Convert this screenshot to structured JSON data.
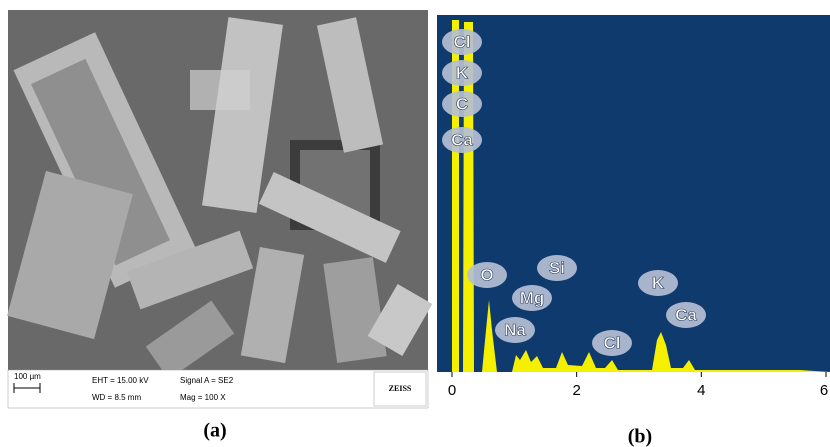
{
  "panel_a": {
    "caption": "(a)",
    "scale_bar": "100 µm",
    "eht": "EHT = 15.00 kV",
    "wd": "WD = 8.5 mm",
    "signal": "Signal A = SE2",
    "mag": "Mag = 100 X",
    "brand": "ZEISS"
  },
  "panel_b": {
    "caption": "(b)",
    "xlim": [
      0,
      6
    ],
    "xticks": [
      0,
      2,
      4,
      6
    ],
    "peak_labels": [
      "Cl",
      "K",
      "C",
      "Ca",
      "O",
      "Si",
      "Mg",
      "Na",
      "Cl",
      "K",
      "Ca"
    ]
  }
}
